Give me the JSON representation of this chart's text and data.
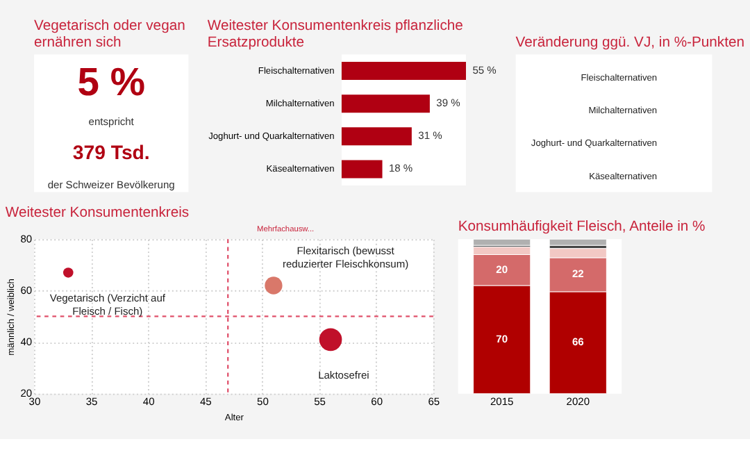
{
  "chart_data": [
    {
      "type": "other",
      "title": "Vegetarisch oder vegan ernähren sich",
      "annotations": [
        "5 %",
        "entspricht",
        "379 Tsd.",
        "der Schweizer Bevölkerung"
      ]
    },
    {
      "type": "bar",
      "orientation": "horizontal",
      "title": "Weitester Konsumentenkreis pflanzliche Ersatzprodukte",
      "categories": [
        "Fleischalternativen",
        "Milchalternativen",
        "Joghurt- und Quarkalternativen",
        "Käsealternativen"
      ],
      "values": [
        55,
        39,
        31,
        18
      ],
      "value_labels": [
        "55 %",
        "39 %",
        "31 %",
        "18 %"
      ],
      "color": "#b00012"
    },
    {
      "type": "other",
      "title": "Veränderung ggü. VJ, in %-Punkten",
      "annotations": [
        "Fleischalternativen",
        "Milchalternativen",
        "Joghurt- und Quarkalternativen",
        "Käsealternativen"
      ]
    },
    {
      "type": "bubble",
      "title": "Weitester Konsumentenkreis",
      "xlabel": "Alter",
      "ylabel": "männlich / weiblich",
      "xlim": [
        30,
        65
      ],
      "xticks": [
        30,
        35,
        40,
        45,
        50,
        55,
        60,
        65
      ],
      "ylim": [
        20,
        80
      ],
      "yticks": [
        20,
        40,
        60,
        80
      ],
      "grid": true,
      "annotations": [
        "Mehrfachausw..."
      ],
      "ref_lines": [
        {
          "axis": "x",
          "value": 47,
          "color": "#e0506a",
          "line_style": "dashed"
        },
        {
          "axis": "y",
          "value": 50,
          "color": "#e0506a",
          "line_style": "dashed"
        }
      ],
      "series": [
        {
          "name": "Vegetarisch (Verzicht auf Fleisch / Fisch)",
          "x": [
            33
          ],
          "values": [
            67
          ],
          "sizes": [
            0.2
          ],
          "color": "#c0102a"
        },
        {
          "name": "Flexitarisch (bewusst reduzierter Fleischkonsum)",
          "x": [
            51
          ],
          "values": [
            62
          ],
          "sizes": [
            0.6
          ],
          "color": "#d9786a"
        },
        {
          "name": "Laktosefrei",
          "x": [
            56
          ],
          "values": [
            41
          ],
          "sizes": [
            1
          ],
          "color": "#c0102a"
        }
      ]
    },
    {
      "type": "bar",
      "stacked": true,
      "title": "Konsumhäufigkeit Fleisch, Anteile in %",
      "categories": [
        "2015",
        "2020"
      ],
      "series": [
        {
          "color": "#b00000",
          "values": [
            70,
            66
          ],
          "value_labels": [
            "70",
            "66"
          ]
        },
        {
          "color": "#d46a6a",
          "values": [
            20,
            22
          ],
          "value_labels": [
            "20",
            "22"
          ]
        },
        {
          "color": "#f2c8c4",
          "values": [
            5,
            6
          ]
        },
        {
          "color": "#444444",
          "values": [
            1,
            2
          ]
        },
        {
          "color": "#b0b0b0",
          "values": [
            4,
            4
          ]
        }
      ]
    }
  ]
}
